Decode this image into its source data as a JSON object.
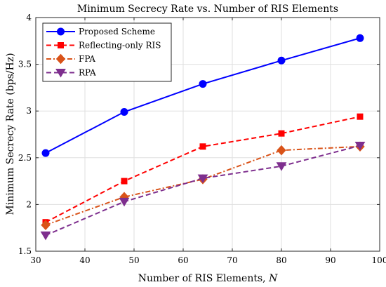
{
  "chart_data": {
    "type": "line",
    "title": "Minimum Secrecy Rate vs. Number of RIS Elements",
    "xlabel": "Number of RIS Elements, ",
    "xlabel_symbol": "N",
    "ylabel": "Minimum Secrecy Rate (bps/Hz)",
    "xlim": [
      30,
      100
    ],
    "ylim": [
      1.5,
      4
    ],
    "xticks": [
      "30",
      "40",
      "50",
      "60",
      "70",
      "80",
      "90",
      "100"
    ],
    "yticks": [
      "1.5",
      "2",
      "2.5",
      "3",
      "3.5",
      "4"
    ],
    "x": [
      32,
      48,
      64,
      80,
      96
    ],
    "grid": true,
    "legend_position": "top-left",
    "series": [
      {
        "name": "Proposed Scheme",
        "values": [
          2.55,
          2.99,
          3.29,
          3.54,
          3.78
        ],
        "color": "#0000ff",
        "dash": "solid",
        "marker": "circle"
      },
      {
        "name": "Reflecting-only RIS",
        "values": [
          1.81,
          2.25,
          2.62,
          2.76,
          2.94
        ],
        "color": "#ff0000",
        "dash": "dashed",
        "marker": "square"
      },
      {
        "name": "FPA",
        "values": [
          1.78,
          2.08,
          2.27,
          2.58,
          2.62
        ],
        "color": "#d95319",
        "dash": "dashdot",
        "marker": "diamond"
      },
      {
        "name": "RPA",
        "values": [
          1.67,
          2.03,
          2.28,
          2.41,
          2.63
        ],
        "color": "#7e2f8e",
        "dash": "dashed",
        "marker": "triangle-down"
      }
    ]
  }
}
